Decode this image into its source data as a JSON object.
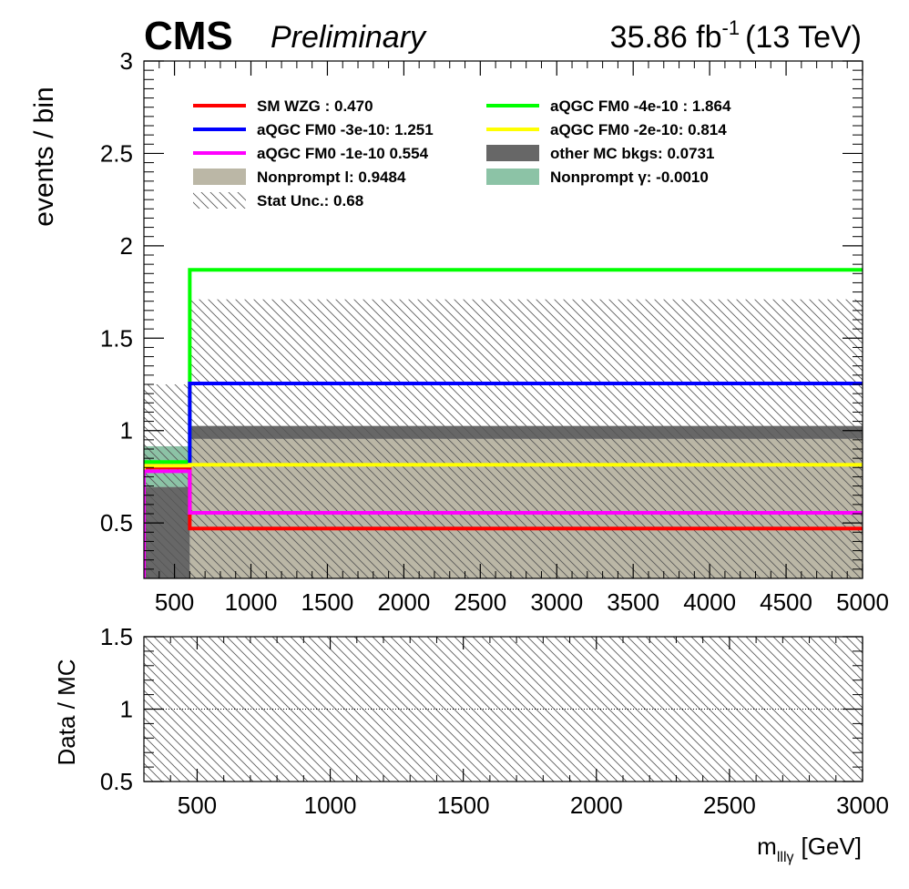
{
  "header": {
    "experiment": "CMS",
    "status": "Preliminary",
    "lumi_value": "35.86 fb",
    "lumi_exp": "-1",
    "energy": "(13 TeV)"
  },
  "chart_data": [
    {
      "type": "histogram",
      "panel": "main",
      "xlim": [
        300,
        5000
      ],
      "ylim": [
        0.2,
        3.0
      ],
      "ylabel": "events / bin",
      "xlabel": "",
      "x_ticks": [
        500,
        1000,
        1500,
        2000,
        2500,
        3000,
        3500,
        4000,
        4500,
        5000
      ],
      "y_ticks": [
        0.5,
        1,
        1.5,
        2,
        2.5,
        3
      ],
      "y_tick_labels": [
        "0.5",
        "1",
        "1.5",
        "2",
        "2.5",
        "3"
      ],
      "bin_edges": [
        300,
        600,
        5000
      ],
      "stack": [
        {
          "name": "Nonprompt l: 0.9484",
          "color": "#bbb7a6",
          "values": [
            0.0,
            0.955
          ]
        },
        {
          "name": "other MC bkgs: 0.0731",
          "color": "#676767",
          "values": [
            0.695,
            0.07
          ]
        },
        {
          "name": "Nonprompt γ: -0.0010",
          "color": "#8cc3a6",
          "values": [
            0.22,
            0.0
          ]
        }
      ],
      "stat_unc": {
        "name": "Stat Unc.: 0.68",
        "low": [
          0.2,
          0.2
        ],
        "high": [
          1.25,
          1.71
        ]
      },
      "lines": [
        {
          "name": "SM WZG : 0.470",
          "color": "#ff0000",
          "values": [
            0.8,
            0.47
          ]
        },
        {
          "name": "aQGC FM0 -4e-10 : 1.864",
          "color": "#00ff00",
          "values": [
            0.83,
            1.87
          ]
        },
        {
          "name": "aQGC FM0 -3e-10: 1.251",
          "color": "#0000ff",
          "values": [
            0.81,
            1.255
          ]
        },
        {
          "name": "aQGC FM0 -2e-10: 0.814",
          "color": "#ffff00",
          "values": [
            0.81,
            0.815
          ]
        },
        {
          "name": "aQGC FM0 -1e-10 0.554",
          "color": "#ff00ff",
          "values": [
            0.78,
            0.555
          ]
        }
      ],
      "legend": [
        {
          "label": "SM WZG : 0.470",
          "kind": "line",
          "color": "#ff0000"
        },
        {
          "label": "aQGC FM0 -4e-10 : 1.864",
          "kind": "line",
          "color": "#00ff00"
        },
        {
          "label": "aQGC FM0 -3e-10: 1.251",
          "kind": "line",
          "color": "#0000ff"
        },
        {
          "label": "aQGC FM0 -2e-10: 0.814",
          "kind": "line",
          "color": "#ffff00"
        },
        {
          "label": "aQGC FM0 -1e-10 0.554",
          "kind": "line",
          "color": "#ff00ff"
        },
        {
          "label": "other MC bkgs: 0.0731",
          "kind": "box",
          "color": "#676767"
        },
        {
          "label": "Nonprompt l: 0.9484",
          "kind": "box",
          "color": "#bbb7a6"
        },
        {
          "label": "Nonprompt γ: -0.0010",
          "kind": "box",
          "color": "#8cc3a6"
        },
        {
          "label": "Stat Unc.: 0.68",
          "kind": "hatch",
          "color": "#444444"
        }
      ],
      "legend_placement": "top"
    },
    {
      "type": "ratio",
      "panel": "ratio",
      "xlim": [
        300,
        3000
      ],
      "ylim": [
        0.5,
        1.5
      ],
      "ylabel": "Data / MC",
      "xlabel": "m",
      "xlabel_sub": "lllγ",
      "xlabel_unit": "[GeV]",
      "x_ticks": [
        500,
        1000,
        1500,
        2000,
        2500,
        3000
      ],
      "y_ticks": [
        0.5,
        1,
        1.5
      ],
      "y_tick_labels": [
        "0.5",
        "1",
        "1.5"
      ],
      "reference_line": 1.0,
      "stat_unc": {
        "low": 0.5,
        "high": 1.5
      }
    }
  ]
}
